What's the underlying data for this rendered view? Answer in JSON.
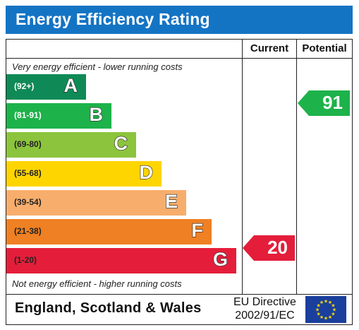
{
  "title": "Energy Efficiency Rating",
  "columns": {
    "current": "Current",
    "potential": "Potential"
  },
  "top_note": "Very energy efficient - lower running costs",
  "bottom_note": "Not energy efficient - higher running costs",
  "bands": [
    {
      "range": "(92+)",
      "letter": "A",
      "color": "#0f8a56",
      "range_color": "#ffffff"
    },
    {
      "range": "(81-91)",
      "letter": "B",
      "color": "#1db24a",
      "range_color": "#ffffff"
    },
    {
      "range": "(69-80)",
      "letter": "C",
      "color": "#8cc43d",
      "range_color": "#222222"
    },
    {
      "range": "(55-68)",
      "letter": "D",
      "color": "#ffd500",
      "range_color": "#222222"
    },
    {
      "range": "(39-54)",
      "letter": "E",
      "color": "#f7ae6c",
      "range_color": "#222222"
    },
    {
      "range": "(21-38)",
      "letter": "F",
      "color": "#ef8023",
      "range_color": "#222222"
    },
    {
      "range": "(1-20)",
      "letter": "G",
      "color": "#e41e3a",
      "range_color": "#222222"
    }
  ],
  "current": {
    "value": "20",
    "band": "G",
    "color": "#e41e3a"
  },
  "potential": {
    "value": "91",
    "band": "B",
    "color": "#1db24a"
  },
  "footer": {
    "region": "England, Scotland & Wales",
    "directive_line1": "EU Directive",
    "directive_line2": "2002/91/EC",
    "flag": "eu-flag-icon"
  }
}
